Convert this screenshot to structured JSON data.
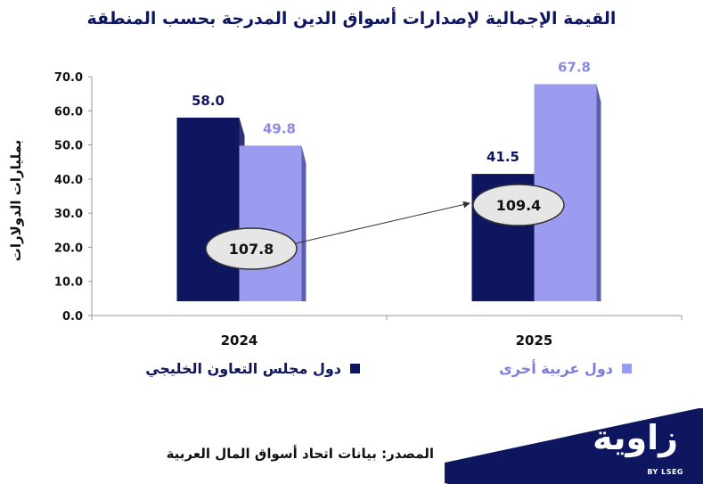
{
  "chart_data": {
    "type": "bar",
    "title": "القيمة الإجمالية لإصدارات أسواق الدين المدرجة بحسب المنطقة",
    "ylabel": "بمليارات الدولارات",
    "xlabel": "",
    "categories": [
      "2024",
      "2025"
    ],
    "ylim": [
      0,
      70
    ],
    "yticks": [
      "0.0",
      "10.0",
      "20.0",
      "30.0",
      "40.0",
      "50.0",
      "60.0",
      "70.0"
    ],
    "series": [
      {
        "name": "دول مجلس التعاون الخليجي",
        "values": [
          58.0,
          41.5
        ],
        "labels": [
          "58.0",
          "41.5"
        ],
        "color": "#0f1660",
        "side_color": "#2f3570"
      },
      {
        "name": "دول عربية أخرى",
        "values": [
          49.8,
          67.8
        ],
        "labels": [
          "49.8",
          "67.8"
        ],
        "color": "#9b9bef",
        "side_color": "#5d5fa8"
      }
    ],
    "totals": [
      {
        "category": "2024",
        "value": 107.8,
        "label": "107.8"
      },
      {
        "category": "2025",
        "value": 109.4,
        "label": "109.4"
      }
    ],
    "grid": false,
    "legend_position": "bottom"
  },
  "source": "المصدر: بيانات اتحاد أسواق المال العربية",
  "logo": {
    "name": "زاوية",
    "sub": "BY LSEG"
  },
  "colors": {
    "title": "#0f1660",
    "logo_bg": "#0f1660"
  }
}
